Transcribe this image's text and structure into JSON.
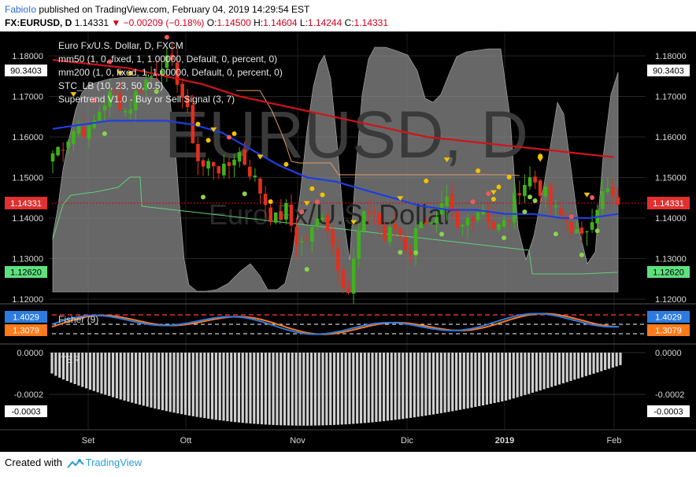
{
  "header": {
    "author": "FabioIo",
    "published": "published on TradingView.com, February 04, 2019 14:29:54 EST",
    "symbol": "FX:EURUSD, D",
    "last": "1.14331",
    "change": "−0.00209 (−0.18%)",
    "o_label": "O:",
    "o_value": "1.14500",
    "h_label": "H:",
    "h_value": "1.14604",
    "l_label": "L:",
    "l_value": "1.14244",
    "c_label": "C:",
    "c_value": "1.14331"
  },
  "main_pane": {
    "legend": [
      "Euro Fx/U.S. Dollar, D, FXCM",
      "mm50 (1, 0, fixed, 1, 1.00000, Default, 0, percent, 0)",
      "mm200 (1, 0, fixed, 1, 1.00000, Default, 0, percent, 0)",
      "STC_LB (10, 23, 50, 0.5)",
      "Supertrend V1.0 - Buy or Sell Signal (3, 7)"
    ],
    "watermark_1": "EURUSD, D",
    "watermark_2": "Euro Fx/U.S. Dollar",
    "y_ticks": [
      "1.18000",
      "1.17000",
      "1.16000",
      "1.15000",
      "1.14000",
      "1.13000",
      "1.12000"
    ],
    "badges": {
      "left_top": "90.3403",
      "right_top": "90.3403",
      "left_price": "1.14331",
      "right_price": "1.14331",
      "left_support": "1.12620",
      "right_support": "1.12620"
    },
    "colors": {
      "up": "#3fb21d",
      "down": "#e0301e",
      "mm50": "#1f3ee0",
      "mm200": "#d0141a",
      "buy_dot": "#8bd24a",
      "sell_dot": "#ef5a5a",
      "signal": "#f2c200"
    }
  },
  "fisher_pane": {
    "label": "Fisher (9)",
    "badge_top": "1.4029",
    "badge_bottom": "1.3079",
    "colors": {
      "fisher": "#2d7be0",
      "trigger": "#ff7a1a"
    }
  },
  "iter_pane": {
    "label": "ITER",
    "y_ticks": [
      "0.0000",
      "-0.0002"
    ],
    "badge": "-0.0003"
  },
  "x_axis": [
    "Set",
    "Ott",
    "Nov",
    "Dic",
    "2019",
    "Feb"
  ],
  "footer": {
    "created": "Created with",
    "brand": "TradingView"
  },
  "chart_data": {
    "type": "candlestick",
    "title": "Euro Fx/U.S. Dollar, D, FXCM",
    "ylim": [
      1.117,
      1.1835
    ],
    "x_range": [
      "Aug 2018",
      "Feb 2019"
    ],
    "x_ticks": [
      "Set",
      "Ott",
      "Nov",
      "Dic",
      "2019",
      "Feb"
    ],
    "close_path": [
      1.156,
      1.159,
      1.163,
      1.161,
      1.168,
      1.171,
      1.166,
      1.172,
      1.175,
      1.179,
      1.176,
      1.165,
      1.152,
      1.154,
      1.151,
      1.157,
      1.152,
      1.146,
      1.139,
      1.142,
      1.133,
      1.136,
      1.142,
      1.131,
      1.121,
      1.138,
      1.143,
      1.135,
      1.138,
      1.131,
      1.141,
      1.137,
      1.144,
      1.136,
      1.141,
      1.143,
      1.137,
      1.139,
      1.148,
      1.15,
      1.146,
      1.141,
      1.139,
      1.134,
      1.142,
      1.147,
      1.143
    ],
    "series": [
      {
        "name": "mm50",
        "values": [
          1.162,
          1.163,
          1.164,
          1.164,
          1.164,
          1.163,
          1.161,
          1.157,
          1.153,
          1.15,
          1.149,
          1.147,
          1.145,
          1.143,
          1.142,
          1.142,
          1.141,
          1.141,
          1.14,
          1.14,
          1.141
        ]
      },
      {
        "name": "mm200",
        "values": [
          1.179,
          1.178,
          1.177,
          1.175,
          1.173,
          1.17,
          1.168,
          1.166,
          1.164,
          1.162,
          1.16,
          1.159,
          1.158,
          1.157,
          1.156,
          1.155
        ]
      },
      {
        "name": "Fisher (9)",
        "last": 1.4029
      },
      {
        "name": "Fisher trigger",
        "last": 1.3079
      },
      {
        "name": "ITER",
        "last": -0.0003
      }
    ],
    "last_price": 1.14331,
    "support_level": 1.1262,
    "stc_value": 90.3403
  }
}
